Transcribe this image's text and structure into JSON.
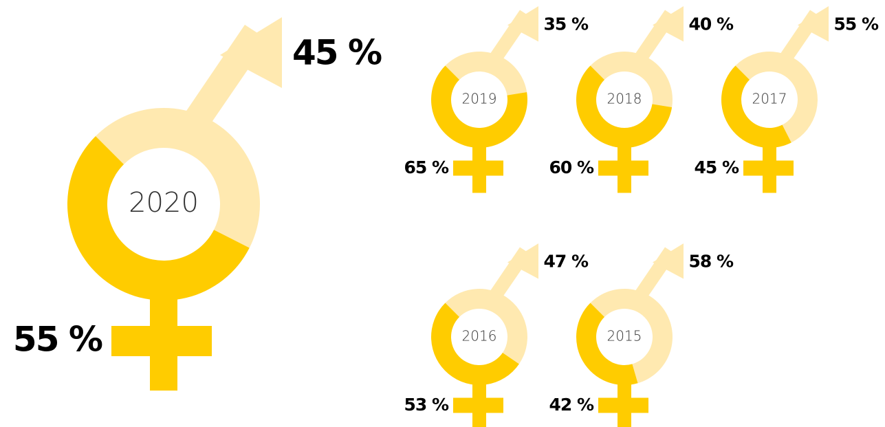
{
  "chart_data": [
    {
      "type": "donut",
      "title": "2020",
      "values": [
        55,
        45
      ],
      "value_labels": [
        "55 %",
        "45 %"
      ],
      "colors": [
        "#ffcc00",
        "#ffe9b0"
      ]
    },
    {
      "type": "donut",
      "title": "2019",
      "values": [
        65,
        35
      ],
      "value_labels": [
        "65 %",
        "35 %"
      ],
      "colors": [
        "#ffcc00",
        "#ffe9b0"
      ]
    },
    {
      "type": "donut",
      "title": "2018",
      "values": [
        60,
        40
      ],
      "value_labels": [
        "60 %",
        "40 %"
      ],
      "colors": [
        "#ffcc00",
        "#ffe9b0"
      ]
    },
    {
      "type": "donut",
      "title": "2017",
      "values": [
        45,
        55
      ],
      "value_labels": [
        "45 %",
        "55 %"
      ],
      "colors": [
        "#ffcc00",
        "#ffe9b0"
      ]
    },
    {
      "type": "donut",
      "title": "2016",
      "values": [
        53,
        47
      ],
      "value_labels": [
        "53 %",
        "47 %"
      ],
      "colors": [
        "#ffcc00",
        "#ffe9b0"
      ]
    },
    {
      "type": "donut",
      "title": "2015",
      "values": [
        42,
        58
      ],
      "value_labels": [
        "42 %",
        "58 %"
      ],
      "colors": [
        "#ffcc00",
        "#ffe9b0"
      ]
    }
  ]
}
